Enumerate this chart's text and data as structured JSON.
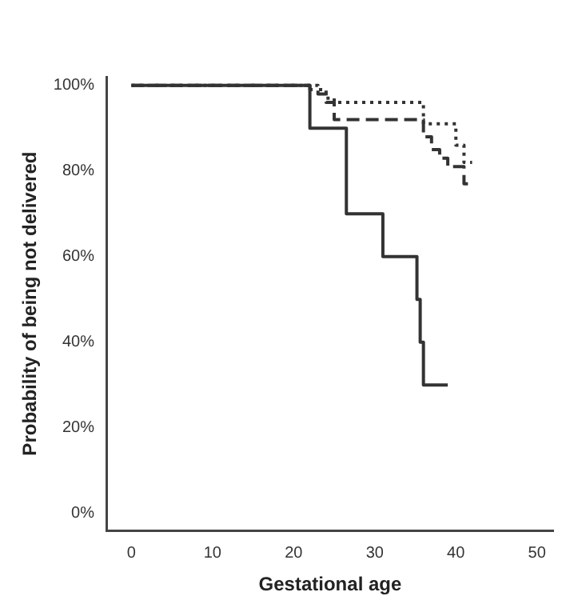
{
  "chart_data": {
    "type": "step",
    "xlabel": "Gestational age",
    "ylabel": "Probability of being not delivered",
    "series": [
      {
        "color": "#333333",
        "line_style": "dotted",
        "x": [
          0,
          23,
          24,
          25,
          35,
          36,
          40,
          41,
          42
        ],
        "values": [
          100,
          99,
          97,
          96,
          96,
          91,
          86,
          82,
          82
        ]
      },
      {
        "color": "#333333",
        "line_style": "dashed",
        "x": [
          0,
          22,
          23,
          24,
          25,
          35,
          36,
          37,
          38,
          39,
          41,
          42
        ],
        "values": [
          100,
          99,
          98,
          96,
          92,
          92,
          88,
          85,
          83,
          81,
          77,
          77
        ]
      },
      {
        "color": "#333333",
        "line_style": "solid",
        "x": [
          0,
          22,
          26.5,
          31,
          35.2,
          35.6,
          36,
          39
        ],
        "values": [
          100,
          90,
          70,
          60,
          50,
          40,
          30,
          30
        ]
      }
    ],
    "xlim": [
      -3,
      52
    ],
    "xticks": [
      0,
      10,
      20,
      30,
      40,
      50
    ],
    "ylim": [
      -4,
      102
    ],
    "yticks": [
      {
        "value": 0,
        "label": "0%"
      },
      {
        "value": 20,
        "label": "20%"
      },
      {
        "value": 40,
        "label": "40%"
      },
      {
        "value": 60,
        "label": "60%"
      },
      {
        "value": 80,
        "label": "80%"
      },
      {
        "value": 100,
        "label": "100%"
      }
    ],
    "grid": false,
    "legend": false
  }
}
